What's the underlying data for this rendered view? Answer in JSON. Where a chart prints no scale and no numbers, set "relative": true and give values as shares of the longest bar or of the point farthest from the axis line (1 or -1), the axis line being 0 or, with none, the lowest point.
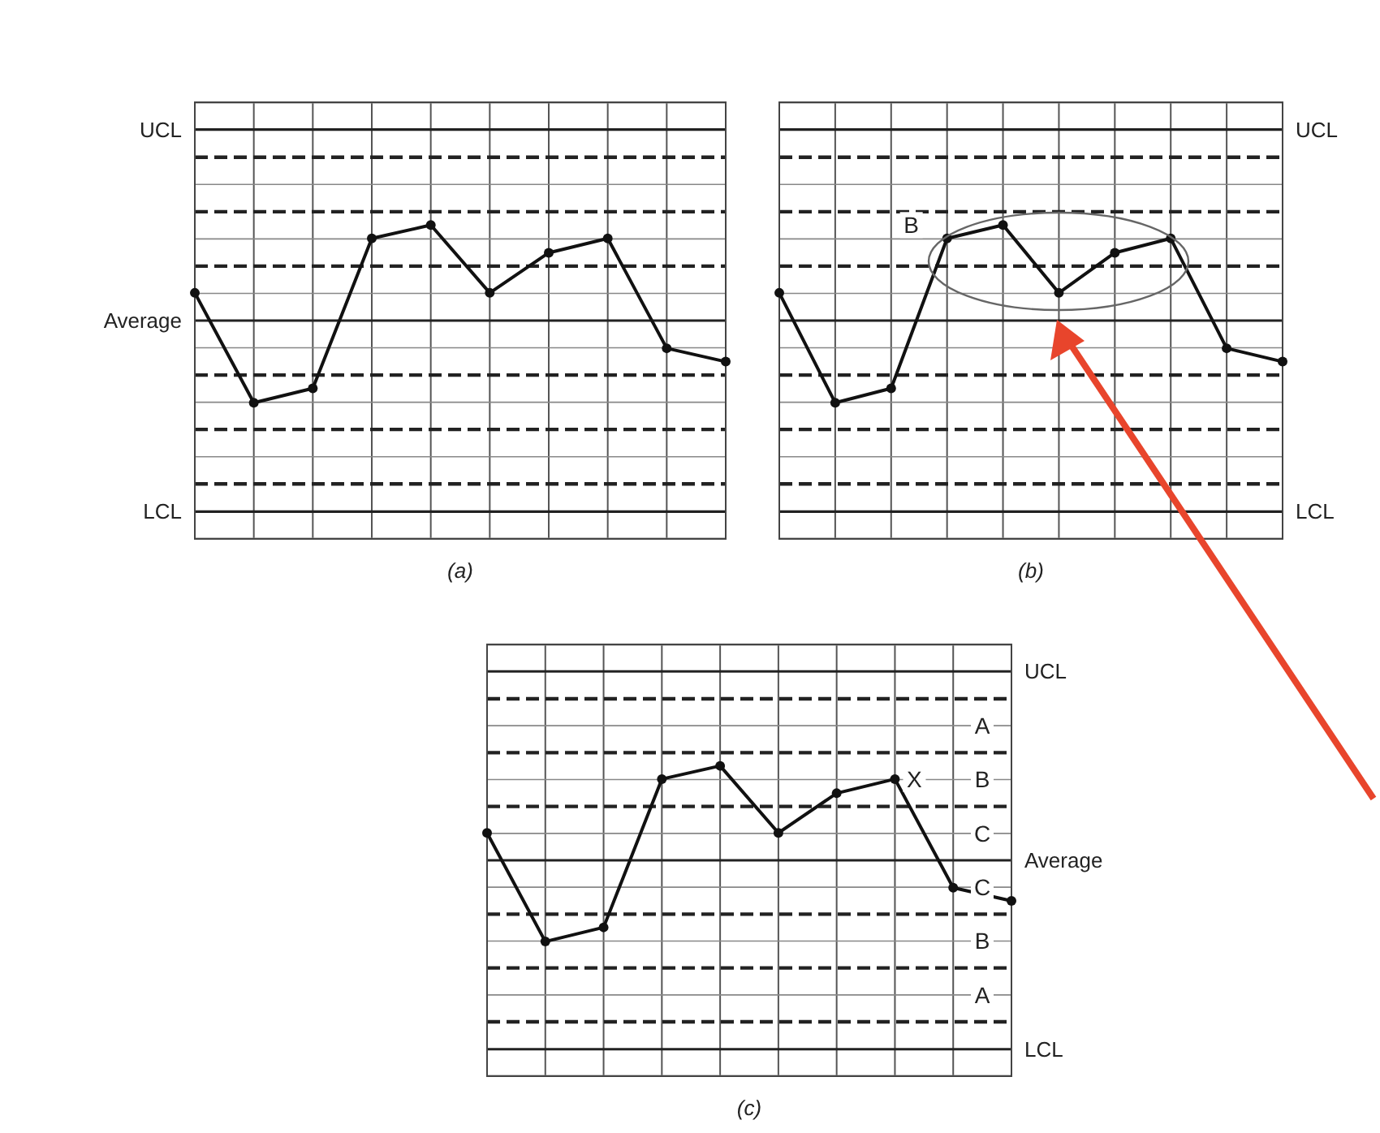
{
  "chart_data": [
    {
      "type": "line",
      "xlabel": "(a)",
      "relative": true,
      "categories": [
        null,
        null,
        null,
        null,
        null,
        null,
        null,
        null,
        null,
        null
      ],
      "series": [
        {
          "color": "#111111",
          "values": [
            0.29,
            -0.86,
            -0.71,
            0.86,
            1,
            0.29,
            0.71,
            0.86,
            -0.29,
            -0.43
          ]
        }
      ],
      "ref_lines": [
        {
          "axis": "y",
          "value": 2,
          "label": "UCL"
        },
        {
          "axis": "y",
          "value": 1.71,
          "line_style": "dashed"
        },
        {
          "axis": "y",
          "value": 1.14,
          "line_style": "dashed"
        },
        {
          "axis": "y",
          "value": 0.57,
          "line_style": "dashed"
        },
        {
          "axis": "y",
          "value": 0,
          "label": "Average"
        },
        {
          "axis": "y",
          "value": -0.57,
          "line_style": "dashed"
        },
        {
          "axis": "y",
          "value": -1.14,
          "line_style": "dashed"
        },
        {
          "axis": "y",
          "value": -1.71,
          "line_style": "dashed"
        },
        {
          "axis": "y",
          "value": -2,
          "label": "LCL"
        }
      ],
      "grid": true,
      "marker": "circle",
      "line_style": "solid"
    },
    {
      "type": "line",
      "xlabel": "(b)",
      "relative": true,
      "categories": [
        null,
        null,
        null,
        null,
        null,
        null,
        null,
        null,
        null,
        null
      ],
      "series": [
        {
          "color": "#111111",
          "values": [
            0.29,
            -0.86,
            -0.71,
            0.86,
            1,
            0.29,
            0.71,
            0.86,
            -0.29,
            -0.43
          ]
        }
      ],
      "ref_lines": [
        {
          "axis": "y",
          "value": 2,
          "label": "UCL"
        },
        {
          "axis": "y",
          "value": 1.71,
          "line_style": "dashed"
        },
        {
          "axis": "y",
          "value": 1.14,
          "line_style": "dashed"
        },
        {
          "axis": "y",
          "value": 0.57,
          "line_style": "dashed"
        },
        {
          "axis": "y",
          "value": 0
        },
        {
          "axis": "y",
          "value": -0.57,
          "line_style": "dashed"
        },
        {
          "axis": "y",
          "value": -1.14,
          "line_style": "dashed"
        },
        {
          "axis": "y",
          "value": -1.71,
          "line_style": "dashed"
        },
        {
          "axis": "y",
          "value": -2,
          "label": "LCL"
        }
      ],
      "annotations": [
        {
          "text": "B",
          "y": 1
        }
      ],
      "grid": true,
      "marker": "circle",
      "line_style": "solid"
    },
    {
      "type": "line",
      "xlabel": "(c)",
      "relative": true,
      "categories": [
        null,
        null,
        null,
        null,
        null,
        null,
        null,
        null,
        null,
        null
      ],
      "series": [
        {
          "color": "#111111",
          "values": [
            0.29,
            -0.86,
            -0.71,
            0.86,
            1,
            0.29,
            0.71,
            0.86,
            -0.29,
            -0.43
          ]
        }
      ],
      "ref_lines": [
        {
          "axis": "y",
          "value": 2,
          "label": "UCL"
        },
        {
          "axis": "y",
          "value": 1.71,
          "line_style": "dashed"
        },
        {
          "axis": "y",
          "value": 1.14,
          "line_style": "dashed"
        },
        {
          "axis": "y",
          "value": 0.57,
          "line_style": "dashed"
        },
        {
          "axis": "y",
          "value": 0,
          "label": "Average"
        },
        {
          "axis": "y",
          "value": -0.57,
          "line_style": "dashed"
        },
        {
          "axis": "y",
          "value": -1.14,
          "line_style": "dashed"
        },
        {
          "axis": "y",
          "value": -1.71,
          "line_style": "dashed"
        },
        {
          "axis": "y",
          "value": -2,
          "label": "LCL"
        }
      ],
      "annotations": [
        "A",
        "B",
        "C",
        "C",
        "B",
        "A",
        {
          "text": "X",
          "y": 0.86
        }
      ],
      "grid": true,
      "marker": "circle",
      "line_style": "solid"
    }
  ]
}
